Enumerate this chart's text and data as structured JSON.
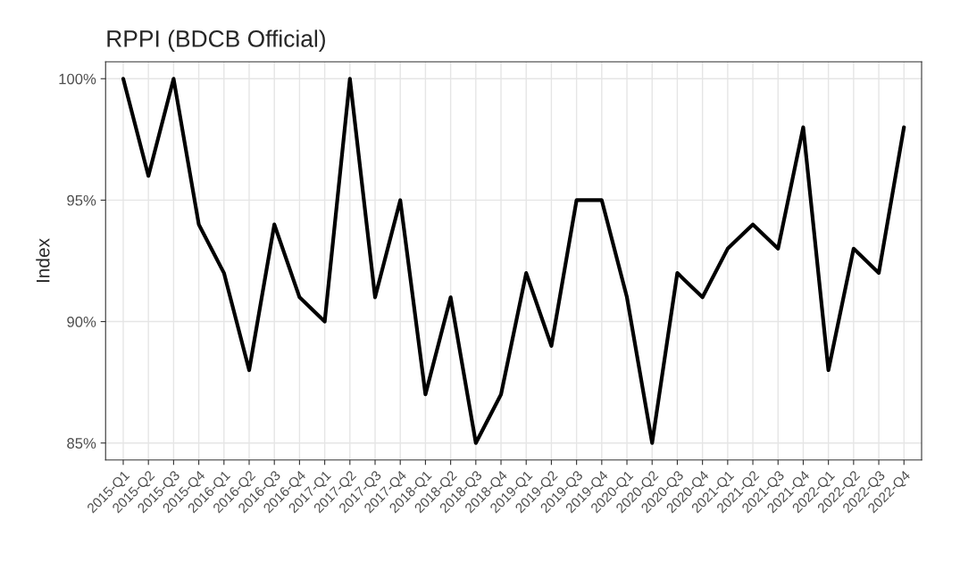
{
  "chart_data": {
    "type": "line",
    "title": "RPPI (BDCB Official)",
    "ylabel": "Index",
    "categories": [
      "2015-Q1",
      "2015-Q2",
      "2015-Q3",
      "2015-Q4",
      "2016-Q1",
      "2016-Q2",
      "2016-Q3",
      "2016-Q4",
      "2017-Q1",
      "2017-Q2",
      "2017-Q3",
      "2017-Q4",
      "2018-Q1",
      "2018-Q2",
      "2018-Q3",
      "2018-Q4",
      "2019-Q1",
      "2019-Q2",
      "2019-Q3",
      "2019-Q4",
      "2020-Q1",
      "2020-Q2",
      "2020-Q3",
      "2020-Q4",
      "2021-Q1",
      "2021-Q2",
      "2021-Q3",
      "2021-Q4",
      "2022-Q1",
      "2022-Q2",
      "2022-Q3",
      "2022-Q4"
    ],
    "series": [
      {
        "color": "#000000",
        "values": [
          100,
          96,
          100,
          94,
          92,
          88,
          94,
          91,
          90,
          100,
          91,
          95,
          87,
          91,
          85,
          87,
          92,
          89,
          95,
          95,
          91,
          85,
          92,
          91,
          93,
          94,
          93,
          98,
          88,
          93,
          92,
          98
        ]
      }
    ],
    "ylim": [
      84.3,
      100.7
    ],
    "yticks": [
      {
        "value": 85,
        "label": "85%"
      },
      {
        "value": 90,
        "label": "90%"
      },
      {
        "value": 95,
        "label": "95%"
      },
      {
        "value": 100,
        "label": "100%"
      }
    ],
    "grid": true,
    "line_style": "solid",
    "marker": "none"
  }
}
